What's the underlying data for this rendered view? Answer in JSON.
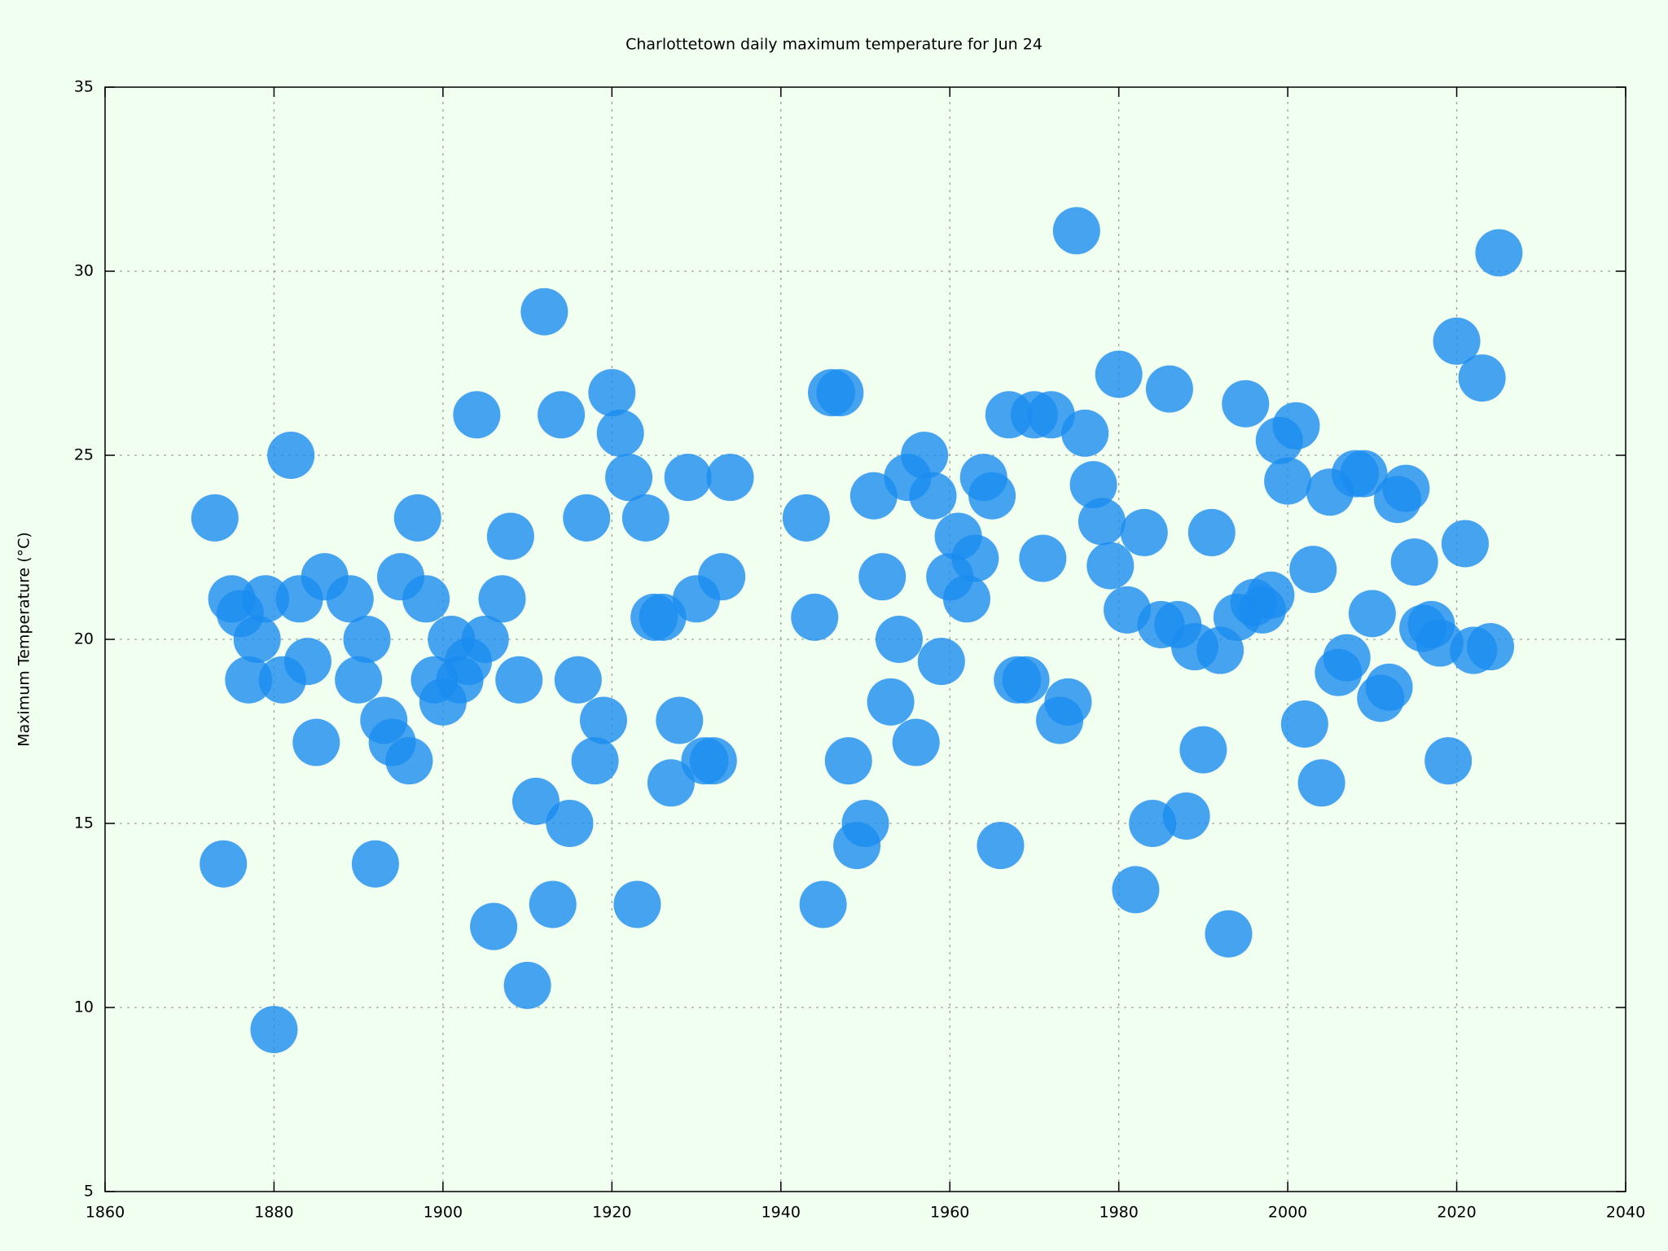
{
  "chart_data": {
    "type": "scatter",
    "title": "Charlottetown daily maximum temperature for Jun 24",
    "y_label": "Maximum Temperature (°C)",
    "color": "#1a8cf0",
    "x": [
      1873,
      1874,
      1875,
      1876,
      1877,
      1878,
      1879,
      1880,
      1881,
      1882,
      1883,
      1884,
      1885,
      1886,
      1889,
      1890,
      1891,
      1892,
      1893,
      1894,
      1895,
      1896,
      1897,
      1898,
      1899,
      1900,
      1901,
      1902,
      1903,
      1904,
      1905,
      1906,
      1907,
      1908,
      1909,
      1910,
      1911,
      1912,
      1913,
      1914,
      1915,
      1916,
      1917,
      1918,
      1919,
      1920,
      1921,
      1922,
      1923,
      1924,
      1925,
      1926,
      1927,
      1928,
      1929,
      1930,
      1931,
      1932,
      1933,
      1934,
      1943,
      1944,
      1945,
      1946,
      1947,
      1948,
      1949,
      1950,
      1951,
      1952,
      1953,
      1954,
      1955,
      1956,
      1957,
      1958,
      1959,
      1960,
      1961,
      1962,
      1963,
      1964,
      1965,
      1966,
      1967,
      1968,
      1969,
      1970,
      1971,
      1972,
      1973,
      1974,
      1975,
      1976,
      1977,
      1978,
      1979,
      1980,
      1981,
      1982,
      1983,
      1984,
      1985,
      1986,
      1987,
      1988,
      1989,
      1990,
      1991,
      1992,
      1993,
      1994,
      1995,
      1996,
      1997,
      1998,
      1999,
      2000,
      2001,
      2002,
      2003,
      2004,
      2005,
      2006,
      2007,
      2008,
      2009,
      2010,
      2011,
      2012,
      2013,
      2014,
      2015,
      2016,
      2017,
      2018,
      2019,
      2020,
      2021,
      2022,
      2023,
      2024,
      2025
    ],
    "values": [
      23.3,
      13.9,
      21.1,
      20.7,
      18.9,
      20.0,
      21.1,
      9.4,
      18.9,
      25.0,
      21.1,
      19.4,
      17.2,
      21.7,
      21.1,
      18.9,
      20.0,
      13.9,
      17.8,
      17.2,
      21.7,
      16.7,
      23.3,
      21.1,
      18.9,
      18.3,
      20.0,
      18.9,
      19.4,
      26.1,
      20.0,
      12.2,
      21.1,
      22.8,
      18.9,
      10.6,
      15.6,
      28.9,
      12.8,
      26.1,
      15.0,
      18.9,
      23.3,
      16.7,
      17.8,
      26.7,
      25.6,
      24.4,
      12.8,
      23.3,
      20.6,
      20.6,
      16.1,
      17.8,
      24.4,
      21.1,
      16.7,
      16.7,
      21.7,
      24.4,
      23.3,
      20.6,
      12.8,
      26.7,
      26.7,
      16.7,
      14.4,
      15.0,
      23.9,
      21.7,
      18.3,
      20.0,
      24.4,
      17.2,
      25.0,
      23.9,
      19.4,
      21.7,
      22.8,
      21.1,
      22.2,
      24.4,
      23.9,
      14.4,
      26.1,
      18.9,
      18.9,
      26.1,
      22.2,
      26.1,
      17.8,
      18.3,
      31.1,
      25.6,
      24.2,
      23.2,
      22.0,
      27.2,
      20.8,
      13.2,
      22.9,
      15.0,
      20.4,
      26.8,
      20.4,
      15.2,
      19.8,
      17.0,
      22.9,
      19.7,
      12.0,
      20.6,
      26.4,
      21.0,
      20.8,
      21.2,
      25.4,
      24.3,
      25.8,
      17.7,
      21.9,
      16.1,
      24.0,
      19.1,
      19.5,
      24.5,
      24.5,
      20.7,
      18.4,
      18.7,
      23.8,
      24.1,
      22.1,
      20.3,
      20.4,
      19.9,
      16.7,
      28.1,
      22.6,
      19.7,
      27.1,
      19.8,
      30.5
    ],
    "xlim": [
      1860,
      2040
    ],
    "xticks": [
      1860,
      1880,
      1900,
      1920,
      1940,
      1960,
      1980,
      2000,
      2020,
      2040
    ],
    "ylim": [
      5,
      35
    ],
    "yticks": [
      5,
      10,
      15,
      20,
      25,
      30,
      35
    ],
    "grid": true
  }
}
